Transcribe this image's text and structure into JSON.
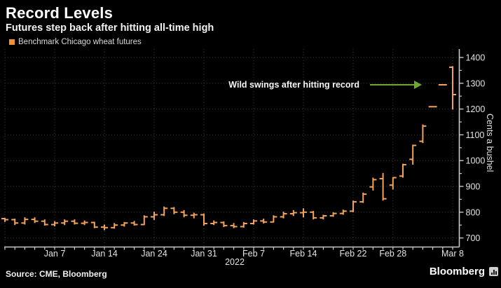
{
  "header": {
    "title": "Record Levels",
    "subtitle": "Futures step back after hitting all-time high"
  },
  "legend": {
    "label": "Benchmark Chicago wheat futures",
    "swatch_color": "#ef922f"
  },
  "annotation": {
    "text": "Wild swings after hitting record",
    "arrow_color": "#6fa830"
  },
  "axes": {
    "y_label": "Cents a bushel",
    "x_year_label": "2022"
  },
  "source": {
    "text": "Source: CME, Bloomberg"
  },
  "branding": {
    "logo_text": "Bloomberg",
    "logo_icon": "terminal-bars-icon"
  },
  "chart_data": {
    "type": "bar",
    "subtype": "ohlc",
    "series_name": "Benchmark Chicago wheat futures",
    "unit": "Cents a bushel",
    "ylim": [
      700,
      1400
    ],
    "yticks": [
      700,
      800,
      900,
      1000,
      1100,
      1200,
      1300,
      1400
    ],
    "y_minor_step": 50,
    "grid": "dotted",
    "legend_position": "top-left",
    "bar_color": "#f2a25a",
    "background_color": "#000000",
    "grid_color": "#3b3b3b",
    "axis_color": "#c9c9c9",
    "xticks": [
      {
        "label": "Jan 7",
        "index": 5
      },
      {
        "label": "Jan 14",
        "index": 10
      },
      {
        "label": "Jan 24",
        "index": 15
      },
      {
        "label": "Jan 31",
        "index": 20
      },
      {
        "label": "Feb 7",
        "index": 25
      },
      {
        "label": "Feb 14",
        "index": 30
      },
      {
        "label": "Feb 22",
        "index": 35
      },
      {
        "label": "Feb 28",
        "index": 39
      },
      {
        "label": "Mar 8",
        "index": 45
      }
    ],
    "bars": [
      {
        "date": "Dec 31",
        "open": 775,
        "high": 778,
        "low": 762,
        "close": 771
      },
      {
        "date": "Jan 3",
        "open": 771,
        "high": 775,
        "low": 750,
        "close": 758
      },
      {
        "date": "Jan 4",
        "open": 758,
        "high": 780,
        "low": 752,
        "close": 772
      },
      {
        "date": "Jan 5",
        "open": 772,
        "high": 780,
        "low": 758,
        "close": 765
      },
      {
        "date": "Jan 6",
        "open": 765,
        "high": 772,
        "low": 748,
        "close": 752
      },
      {
        "date": "Jan 7",
        "open": 752,
        "high": 765,
        "low": 745,
        "close": 758
      },
      {
        "date": "Jan 10",
        "open": 758,
        "high": 772,
        "low": 750,
        "close": 765
      },
      {
        "date": "Jan 11",
        "open": 765,
        "high": 772,
        "low": 752,
        "close": 757
      },
      {
        "date": "Jan 12",
        "open": 757,
        "high": 768,
        "low": 750,
        "close": 760
      },
      {
        "date": "Jan 13",
        "open": 760,
        "high": 763,
        "low": 738,
        "close": 742
      },
      {
        "date": "Jan 14",
        "open": 742,
        "high": 752,
        "low": 730,
        "close": 740
      },
      {
        "date": "Jan 18",
        "open": 740,
        "high": 758,
        "low": 736,
        "close": 750
      },
      {
        "date": "Jan 19",
        "open": 750,
        "high": 762,
        "low": 744,
        "close": 758
      },
      {
        "date": "Jan 20",
        "open": 758,
        "high": 766,
        "low": 748,
        "close": 752
      },
      {
        "date": "Jan 21",
        "open": 752,
        "high": 788,
        "low": 750,
        "close": 782
      },
      {
        "date": "Jan 24",
        "open": 782,
        "high": 802,
        "low": 770,
        "close": 790
      },
      {
        "date": "Jan 25",
        "open": 790,
        "high": 822,
        "low": 785,
        "close": 815
      },
      {
        "date": "Jan 26",
        "open": 815,
        "high": 820,
        "low": 792,
        "close": 800
      },
      {
        "date": "Jan 27",
        "open": 800,
        "high": 808,
        "low": 780,
        "close": 788
      },
      {
        "date": "Jan 28",
        "open": 788,
        "high": 798,
        "low": 776,
        "close": 790
      },
      {
        "date": "Jan 31",
        "open": 790,
        "high": 795,
        "low": 748,
        "close": 756
      },
      {
        "date": "Feb 1",
        "open": 756,
        "high": 768,
        "low": 750,
        "close": 760
      },
      {
        "date": "Feb 2",
        "open": 760,
        "high": 764,
        "low": 742,
        "close": 748
      },
      {
        "date": "Feb 3",
        "open": 748,
        "high": 758,
        "low": 738,
        "close": 744
      },
      {
        "date": "Feb 4",
        "open": 744,
        "high": 762,
        "low": 740,
        "close": 756
      },
      {
        "date": "Feb 7",
        "open": 756,
        "high": 772,
        "low": 752,
        "close": 766
      },
      {
        "date": "Feb 8",
        "open": 766,
        "high": 775,
        "low": 756,
        "close": 762
      },
      {
        "date": "Feb 9",
        "open": 762,
        "high": 788,
        "low": 760,
        "close": 782
      },
      {
        "date": "Feb 10",
        "open": 782,
        "high": 802,
        "low": 776,
        "close": 794
      },
      {
        "date": "Feb 11",
        "open": 794,
        "high": 808,
        "low": 785,
        "close": 798
      },
      {
        "date": "Feb 14",
        "open": 798,
        "high": 815,
        "low": 780,
        "close": 800
      },
      {
        "date": "Feb 15",
        "open": 800,
        "high": 805,
        "low": 772,
        "close": 778
      },
      {
        "date": "Feb 16",
        "open": 778,
        "high": 790,
        "low": 772,
        "close": 786
      },
      {
        "date": "Feb 17",
        "open": 786,
        "high": 800,
        "low": 782,
        "close": 795
      },
      {
        "date": "Feb 18",
        "open": 795,
        "high": 810,
        "low": 790,
        "close": 804
      },
      {
        "date": "Feb 22",
        "open": 804,
        "high": 845,
        "low": 800,
        "close": 840
      },
      {
        "date": "Feb 23",
        "open": 840,
        "high": 876,
        "low": 836,
        "close": 870
      },
      {
        "date": "Feb 24",
        "open": 898,
        "high": 934,
        "low": 884,
        "close": 926
      },
      {
        "date": "Feb 25",
        "open": 930,
        "high": 952,
        "low": 845,
        "close": 852
      },
      {
        "date": "Feb 28",
        "open": 905,
        "high": 936,
        "low": 888,
        "close": 934
      },
      {
        "date": "Mar 1",
        "open": 940,
        "high": 988,
        "low": 934,
        "close": 984
      },
      {
        "date": "Mar 2",
        "open": 1005,
        "high": 1062,
        "low": 984,
        "close": 1059
      },
      {
        "date": "Mar 3",
        "open": 1075,
        "high": 1140,
        "low": 1068,
        "close": 1134
      },
      {
        "date": "Mar 4",
        "open": 1209,
        "high": 1209,
        "low": 1209,
        "close": 1209
      },
      {
        "date": "Mar 7",
        "open": 1294,
        "high": 1294,
        "low": 1294,
        "close": 1294
      },
      {
        "date": "Mar 8",
        "open": 1362,
        "high": 1366,
        "low": 1198,
        "close": 1256
      }
    ]
  }
}
